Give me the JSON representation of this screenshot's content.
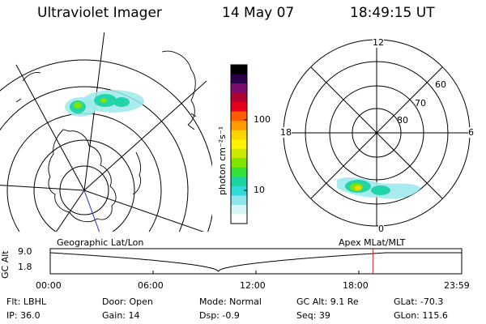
{
  "header": {
    "instrument": "Ultraviolet Imager",
    "date": "14 May 07",
    "time": "18:49:15 UT"
  },
  "colorbar": {
    "unit_label": "photon cm⁻²s⁻¹",
    "ticks": [
      {
        "label": "100",
        "value": 100
      },
      {
        "label": "10",
        "value": 10
      }
    ],
    "colors": [
      "#000000",
      "#2b004a",
      "#7a0d6e",
      "#b4002e",
      "#e6001a",
      "#ff5a00",
      "#ff9b00",
      "#ffd400",
      "#fff200",
      "#cde800",
      "#7fe500",
      "#33e03a",
      "#1bd5a0",
      "#33d8d8",
      "#8ee6ec",
      "#d7f4f6",
      "#ffffff"
    ]
  },
  "geo_panel": {
    "label": "Geographic Lat/Lon"
  },
  "polar_panel": {
    "label": "Apex  MLat/MLT",
    "mlt_labels": {
      "top": "12",
      "left": "18",
      "right": "6",
      "bottom": "0"
    },
    "mlat_labels": [
      "60",
      "70",
      "80"
    ]
  },
  "altitude_plot": {
    "ylabel": "GC Alt",
    "yticks": [
      "9.0",
      "1.8"
    ],
    "xticks": [
      "00:00",
      "06:00",
      "12:00",
      "18:00",
      "23:59"
    ],
    "current_time_hours": 18.82,
    "marker_color": "#cc2222"
  },
  "info": {
    "filter": "Flt: LBHL",
    "ip": "IP: 36.0",
    "door": "Door: Open",
    "gain": "Gain: 14",
    "mode": "Mode: Normal",
    "dsp": "Dsp:    -0.9",
    "gc_alt": "GC Alt: 9.1 Re",
    "seq": "Seq: 39",
    "glat": "GLat: -70.3",
    "glon": "GLon: 115.6"
  }
}
